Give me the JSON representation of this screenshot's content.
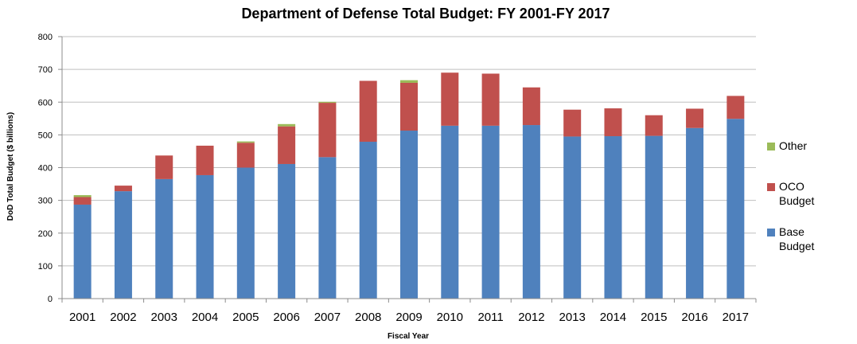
{
  "chart_data": {
    "type": "bar",
    "stacked": true,
    "title": "Department of Defense Total Budget: FY 2001-FY 2017",
    "xlabel": "Fiscal Year",
    "ylabel": "DoD Total Budget ($ billions)",
    "ylim": [
      0,
      800
    ],
    "yticks": [
      0,
      100,
      200,
      300,
      400,
      500,
      600,
      700,
      800
    ],
    "grid": true,
    "legend_position": "right",
    "categories": [
      "2001",
      "2002",
      "2003",
      "2004",
      "2005",
      "2006",
      "2007",
      "2008",
      "2009",
      "2010",
      "2011",
      "2012",
      "2013",
      "2014",
      "2015",
      "2016",
      "2017"
    ],
    "series": [
      {
        "name": "Base Budget",
        "color": "#4F81BD",
        "values": [
          287,
          328,
          365,
          377,
          400,
          411,
          432,
          479,
          513,
          528,
          528,
          530,
          495,
          496,
          497,
          521,
          549
        ]
      },
      {
        "name": "OCO Budget",
        "color": "#C0504D",
        "values": [
          23,
          17,
          72,
          90,
          76,
          115,
          166,
          186,
          146,
          162,
          159,
          115,
          82,
          85,
          63,
          59,
          70
        ]
      },
      {
        "name": "Other",
        "color": "#9BBB59",
        "values": [
          6,
          0,
          0,
          0,
          4,
          7,
          3,
          0,
          8,
          0,
          0,
          0,
          0,
          0,
          0,
          0,
          0
        ]
      }
    ],
    "legend_order": [
      "Other",
      "OCO Budget",
      "Base Budget"
    ]
  }
}
